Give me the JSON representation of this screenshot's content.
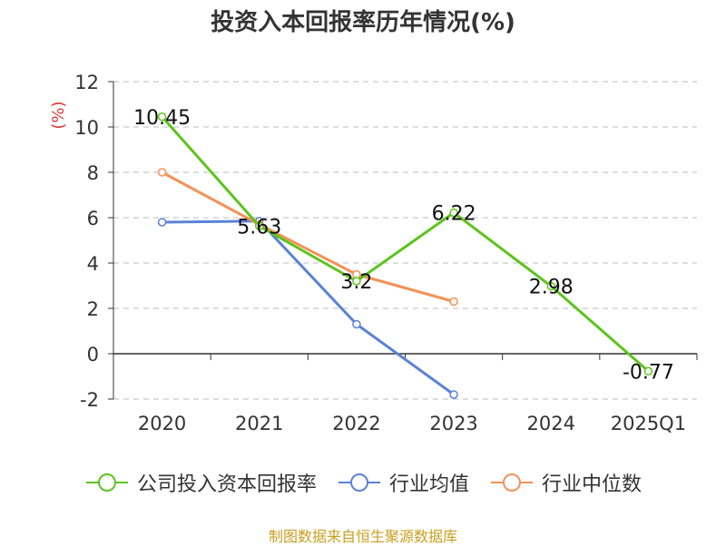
{
  "source": "制图数据来自恒生聚源数据库",
  "chart_data": {
    "type": "line",
    "title": "投资入本回报率历年情况(%)",
    "ylabel": "(%)",
    "xlabel": "",
    "categories": [
      "2020",
      "2021",
      "2022",
      "2023",
      "2024",
      "2025Q1"
    ],
    "ylim": [
      -2,
      12
    ],
    "yticks": [
      -2,
      0,
      2,
      4,
      6,
      8,
      10,
      12
    ],
    "grid": true,
    "legend_position": "bottom",
    "series": [
      {
        "name": "公司投入资本回报率",
        "color": "#5cc41c",
        "values": [
          10.45,
          5.63,
          3.2,
          6.22,
          2.98,
          -0.77
        ],
        "labels": [
          "10.45",
          "5.63",
          "3.2",
          "6.22",
          "2.98",
          "-0.77"
        ]
      },
      {
        "name": "行业均值",
        "color": "#5b82d6",
        "values": [
          5.8,
          5.85,
          1.3,
          -1.8,
          null,
          null
        ]
      },
      {
        "name": "行业中位数",
        "color": "#f39258",
        "values": [
          8.0,
          5.7,
          3.5,
          2.3,
          null,
          null
        ]
      }
    ]
  }
}
